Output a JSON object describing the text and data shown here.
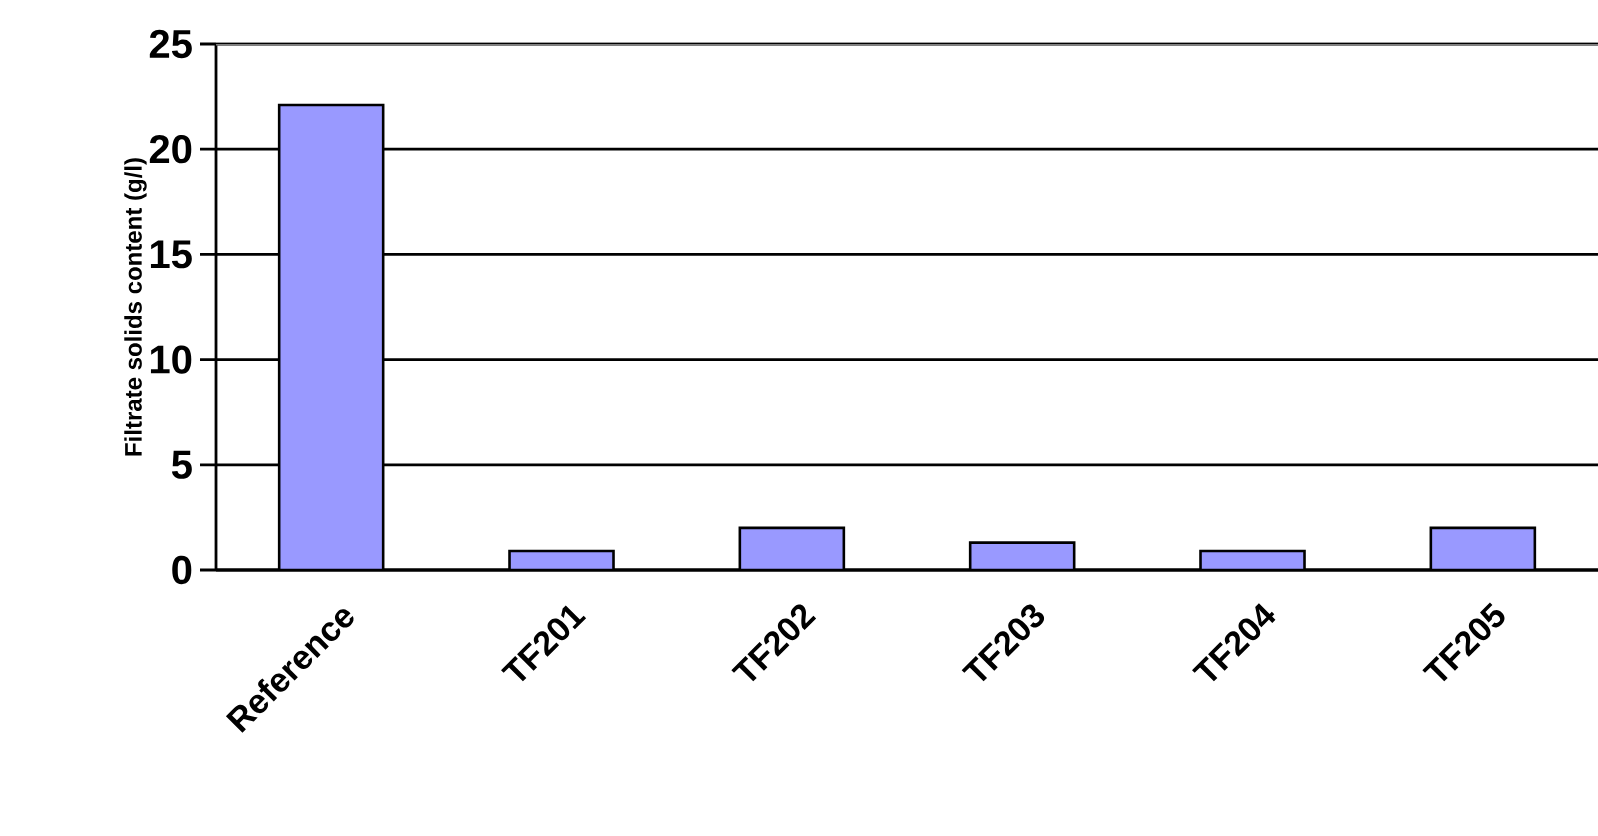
{
  "chart_data": {
    "type": "bar",
    "ylabel": "Filtrate solids content (g/l)",
    "categories": [
      "Reference",
      "TF201",
      "TF202",
      "TF203",
      "TF204",
      "TF205"
    ],
    "values": [
      22.1,
      0.9,
      2.0,
      1.3,
      0.9,
      2.0
    ],
    "color": "#9999ff",
    "ylim": [
      0,
      25
    ],
    "yticks": [
      0,
      5,
      10,
      15,
      20,
      25
    ],
    "grid": "y"
  }
}
